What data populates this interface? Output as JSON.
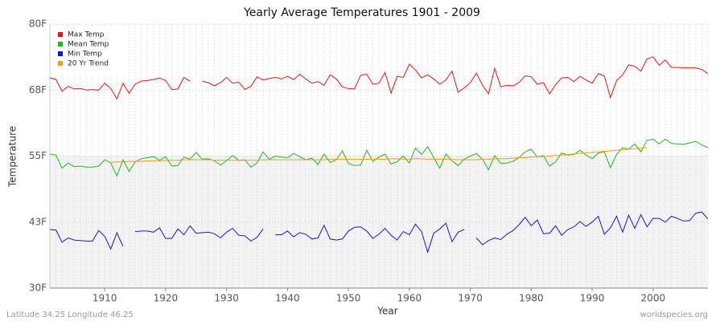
{
  "chart_data": {
    "type": "line",
    "title": "Yearly Average Temperatures 1901 - 2009",
    "x_label": "Year",
    "y_label": "Temperature",
    "footer_left": "Latitude 34.25 Longitude 46.25",
    "footer_right": "worldspecies.org",
    "x": [
      1901,
      1902,
      1903,
      1904,
      1905,
      1906,
      1907,
      1908,
      1909,
      1910,
      1911,
      1912,
      1913,
      1914,
      1915,
      1916,
      1917,
      1918,
      1919,
      1920,
      1921,
      1922,
      1923,
      1924,
      1925,
      1926,
      1927,
      1928,
      1929,
      1930,
      1931,
      1932,
      1933,
      1934,
      1935,
      1936,
      1937,
      1938,
      1939,
      1940,
      1941,
      1942,
      1943,
      1944,
      1945,
      1946,
      1947,
      1948,
      1949,
      1950,
      1951,
      1952,
      1953,
      1954,
      1955,
      1956,
      1957,
      1958,
      1959,
      1960,
      1961,
      1962,
      1963,
      1964,
      1965,
      1966,
      1967,
      1968,
      1969,
      1970,
      1971,
      1972,
      1973,
      1974,
      1975,
      1976,
      1977,
      1978,
      1979,
      1980,
      1981,
      1982,
      1983,
      1984,
      1985,
      1986,
      1987,
      1988,
      1989,
      1990,
      1991,
      1992,
      1993,
      1994,
      1995,
      1996,
      1997,
      1998,
      1999,
      2000,
      2001,
      2002,
      2003,
      2004,
      2005,
      2006,
      2007,
      2008,
      2009
    ],
    "xlim": [
      1901,
      2009
    ],
    "xticks": [
      1910,
      1920,
      1930,
      1940,
      1950,
      1960,
      1970,
      1980,
      1990,
      2000
    ],
    "ylim": [
      30,
      80
    ],
    "yticks": [
      {
        "value": 30,
        "label": "30F"
      },
      {
        "value": 42.5,
        "label": "43F"
      },
      {
        "value": 55,
        "label": "55F"
      },
      {
        "value": 67.5,
        "label": "68F"
      },
      {
        "value": 80,
        "label": "80F"
      }
    ],
    "grid": true,
    "legend": "top-left",
    "series": [
      {
        "name": "Max Temp",
        "color": "#e01818",
        "values": [
          69.8,
          69.5,
          67.3,
          68.2,
          67.7,
          67.8,
          67.5,
          67.6,
          67.5,
          68.8,
          67.8,
          65.8,
          68.8,
          66.9,
          68.6,
          69.2,
          69.3,
          69.5,
          69.8,
          69.3,
          67.6,
          67.7,
          69.9,
          69.2,
          null,
          69.2,
          68.9,
          68.3,
          68.9,
          69.9,
          68.8,
          69.0,
          67.6,
          68.2,
          70.0,
          69.4,
          69.7,
          69.9,
          69.6,
          70.1,
          69.5,
          70.5,
          69.6,
          68.8,
          69.1,
          68.4,
          70.4,
          69.6,
          68.1,
          67.8,
          67.7,
          70.3,
          70.5,
          68.6,
          68.8,
          70.8,
          66.9,
          70.1,
          69.9,
          72.4,
          71.3,
          69.8,
          70.4,
          69.6,
          68.6,
          69.4,
          71.1,
          67.1,
          67.9,
          68.9,
          70.7,
          68.4,
          66.8,
          71.6,
          68.1,
          68.4,
          68.3,
          68.9,
          70.2,
          70.0,
          68.6,
          68.9,
          66.8,
          68.5,
          69.8,
          69.9,
          69.1,
          70.1,
          69.4,
          68.8,
          70.6,
          70.2,
          66.1,
          69.3,
          70.4,
          72.3,
          72.0,
          71.1,
          73.4,
          73.8,
          72.2,
          73.2,
          71.8,
          71.8,
          71.7,
          71.7,
          71.7,
          71.4,
          70.6
        ]
      },
      {
        "name": "Mean Temp",
        "color": "#20b820",
        "values": [
          55.4,
          55.2,
          52.7,
          53.7,
          53.0,
          53.1,
          52.9,
          52.9,
          53.1,
          54.3,
          53.7,
          51.2,
          54.3,
          52.1,
          53.9,
          54.5,
          54.7,
          54.9,
          54.2,
          54.9,
          53.1,
          53.2,
          54.8,
          54.4,
          55.7,
          54.4,
          54.5,
          54.1,
          53.3,
          54.1,
          55.1,
          54.2,
          54.3,
          52.9,
          53.7,
          55.8,
          54.4,
          55.0,
          54.8,
          54.7,
          55.5,
          54.9,
          54.3,
          54.6,
          53.4,
          55.4,
          53.8,
          54.3,
          56.0,
          53.6,
          53.2,
          53.3,
          56.1,
          54.0,
          54.8,
          55.4,
          53.5,
          53.9,
          55.0,
          53.7,
          56.5,
          55.3,
          56.8,
          54.7,
          52.7,
          55.4,
          54.1,
          53.2,
          54.4,
          55.0,
          55.5,
          54.4,
          52.4,
          55.1,
          53.6,
          53.7,
          54.0,
          54.7,
          55.8,
          56.3,
          54.8,
          55.1,
          53.1,
          53.9,
          55.6,
          55.2,
          55.3,
          56.1,
          55.2,
          54.5,
          55.6,
          55.8,
          52.8,
          55.3,
          56.6,
          56.3,
          57.3,
          55.8,
          58.0,
          58.2,
          57.3,
          58.2,
          57.4,
          57.3,
          57.2,
          57.5,
          57.8,
          57.1,
          56.6
        ]
      },
      {
        "name": "Min Temp",
        "color": "#1818d0",
        "values": [
          41.1,
          41.0,
          38.7,
          39.5,
          39.1,
          39.0,
          38.9,
          38.9,
          40.9,
          39.8,
          37.4,
          40.5,
          37.9,
          null,
          40.7,
          40.8,
          40.8,
          40.6,
          41.4,
          39.4,
          39.4,
          41.2,
          40.1,
          41.8,
          40.4,
          40.5,
          40.6,
          40.3,
          39.5,
          40.6,
          41.3,
          40.0,
          39.9,
          38.9,
          39.6,
          41.2,
          null,
          40.1,
          40.1,
          40.8,
          39.7,
          40.5,
          40.2,
          39.3,
          39.5,
          41.9,
          39.3,
          39.1,
          39.3,
          40.8,
          41.5,
          41.6,
          40.8,
          39.4,
          40.2,
          41.3,
          40.0,
          39.1,
          40.7,
          40.1,
          42.1,
          40.7,
          36.8,
          40.4,
          41.2,
          42.3,
          38.8,
          40.6,
          41.1,
          null,
          39.5,
          38.2,
          39.0,
          39.5,
          39.2,
          40.2,
          40.9,
          42.0,
          43.4,
          41.8,
          42.9,
          40.3,
          40.4,
          41.8,
          40.0,
          41.1,
          41.6,
          42.6,
          41.7,
          42.5,
          43.6,
          40.2,
          41.4,
          43.6,
          40.6,
          43.8,
          41.3,
          43.9,
          41.6,
          43.2,
          43.2,
          42.5,
          43.6,
          43.2,
          42.7,
          42.8,
          44.2,
          44.4,
          43.1
        ]
      },
      {
        "name": "20 Yr Trend",
        "color": "#ff9a10",
        "values": [
          null,
          null,
          null,
          null,
          null,
          null,
          null,
          null,
          null,
          null,
          53.8,
          53.9,
          53.9,
          54.0,
          54.0,
          54.0,
          54.1,
          54.1,
          54.1,
          54.2,
          54.2,
          54.2,
          54.3,
          54.3,
          54.3,
          54.3,
          54.3,
          54.2,
          54.2,
          54.2,
          54.2,
          54.2,
          54.2,
          54.2,
          54.2,
          54.3,
          54.3,
          54.3,
          54.3,
          54.3,
          54.3,
          54.3,
          54.3,
          54.3,
          54.3,
          54.3,
          54.4,
          54.4,
          54.4,
          54.4,
          54.4,
          54.4,
          54.4,
          54.4,
          54.4,
          54.4,
          54.5,
          54.5,
          54.4,
          54.4,
          54.5,
          54.5,
          54.4,
          54.4,
          54.4,
          54.4,
          54.4,
          54.3,
          54.3,
          54.3,
          54.3,
          54.4,
          54.4,
          54.5,
          54.5,
          54.5,
          54.6,
          54.7,
          54.7,
          54.8,
          54.9,
          54.9,
          55.0,
          55.1,
          55.2,
          55.3,
          55.4,
          55.5,
          55.6,
          55.7,
          55.8,
          55.9,
          56.0,
          56.1,
          56.2,
          56.3,
          56.4,
          56.5,
          56.6,
          null,
          null,
          null,
          null,
          null,
          null,
          null,
          null,
          null,
          null
        ]
      }
    ]
  }
}
